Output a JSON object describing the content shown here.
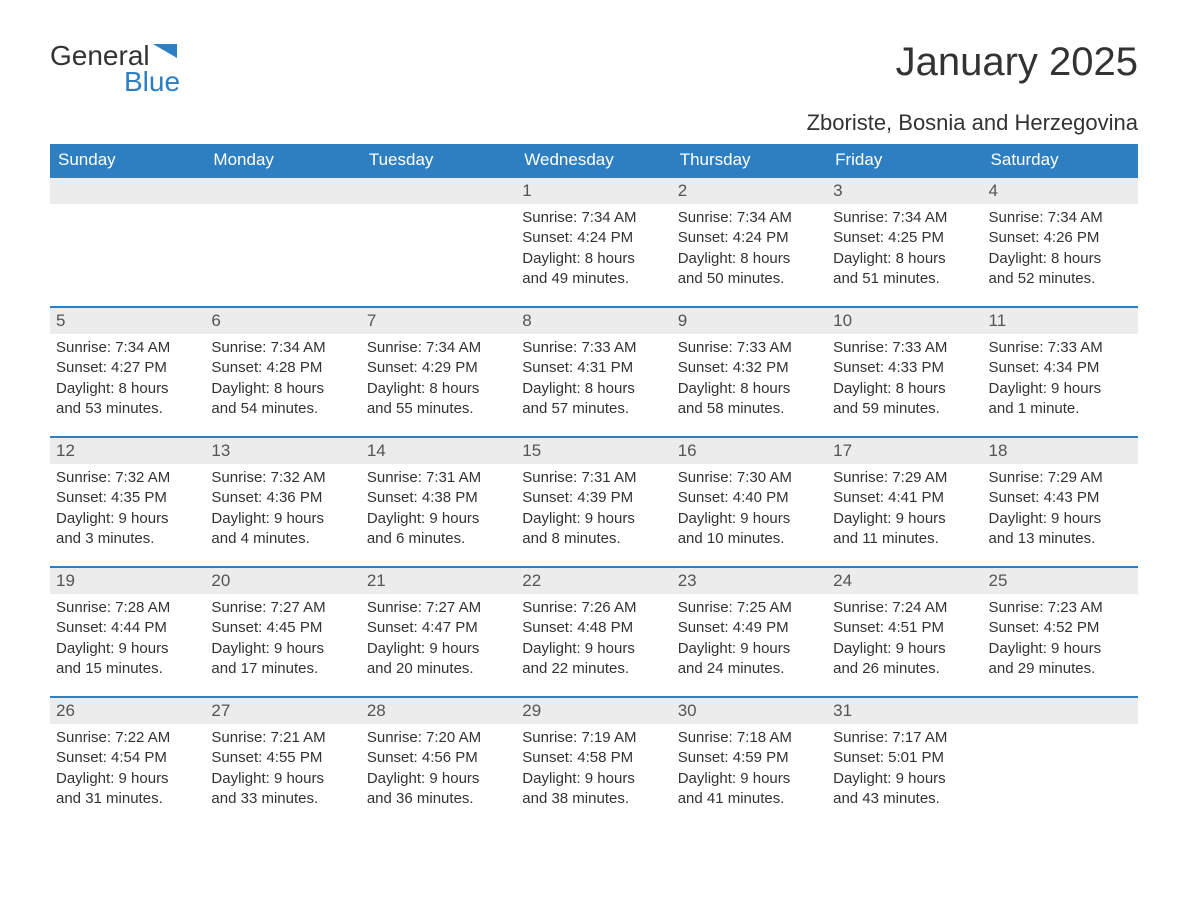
{
  "logo": {
    "text_general": "General",
    "text_blue": "Blue"
  },
  "title": "January 2025",
  "location": "Zboriste, Bosnia and Herzegovina",
  "colors": {
    "header_bg": "#2d7fc2",
    "daynum_bg": "#ececec",
    "text": "#333333",
    "row_border": "#2d7fc2"
  },
  "day_names": [
    "Sunday",
    "Monday",
    "Tuesday",
    "Wednesday",
    "Thursday",
    "Friday",
    "Saturday"
  ],
  "weeks": [
    [
      null,
      null,
      null,
      {
        "n": "1",
        "sunrise": "7:34 AM",
        "sunset": "4:24 PM",
        "day_l1": "Daylight: 8 hours",
        "day_l2": "and 49 minutes."
      },
      {
        "n": "2",
        "sunrise": "7:34 AM",
        "sunset": "4:24 PM",
        "day_l1": "Daylight: 8 hours",
        "day_l2": "and 50 minutes."
      },
      {
        "n": "3",
        "sunrise": "7:34 AM",
        "sunset": "4:25 PM",
        "day_l1": "Daylight: 8 hours",
        "day_l2": "and 51 minutes."
      },
      {
        "n": "4",
        "sunrise": "7:34 AM",
        "sunset": "4:26 PM",
        "day_l1": "Daylight: 8 hours",
        "day_l2": "and 52 minutes."
      }
    ],
    [
      {
        "n": "5",
        "sunrise": "7:34 AM",
        "sunset": "4:27 PM",
        "day_l1": "Daylight: 8 hours",
        "day_l2": "and 53 minutes."
      },
      {
        "n": "6",
        "sunrise": "7:34 AM",
        "sunset": "4:28 PM",
        "day_l1": "Daylight: 8 hours",
        "day_l2": "and 54 minutes."
      },
      {
        "n": "7",
        "sunrise": "7:34 AM",
        "sunset": "4:29 PM",
        "day_l1": "Daylight: 8 hours",
        "day_l2": "and 55 minutes."
      },
      {
        "n": "8",
        "sunrise": "7:33 AM",
        "sunset": "4:31 PM",
        "day_l1": "Daylight: 8 hours",
        "day_l2": "and 57 minutes."
      },
      {
        "n": "9",
        "sunrise": "7:33 AM",
        "sunset": "4:32 PM",
        "day_l1": "Daylight: 8 hours",
        "day_l2": "and 58 minutes."
      },
      {
        "n": "10",
        "sunrise": "7:33 AM",
        "sunset": "4:33 PM",
        "day_l1": "Daylight: 8 hours",
        "day_l2": "and 59 minutes."
      },
      {
        "n": "11",
        "sunrise": "7:33 AM",
        "sunset": "4:34 PM",
        "day_l1": "Daylight: 9 hours",
        "day_l2": "and 1 minute."
      }
    ],
    [
      {
        "n": "12",
        "sunrise": "7:32 AM",
        "sunset": "4:35 PM",
        "day_l1": "Daylight: 9 hours",
        "day_l2": "and 3 minutes."
      },
      {
        "n": "13",
        "sunrise": "7:32 AM",
        "sunset": "4:36 PM",
        "day_l1": "Daylight: 9 hours",
        "day_l2": "and 4 minutes."
      },
      {
        "n": "14",
        "sunrise": "7:31 AM",
        "sunset": "4:38 PM",
        "day_l1": "Daylight: 9 hours",
        "day_l2": "and 6 minutes."
      },
      {
        "n": "15",
        "sunrise": "7:31 AM",
        "sunset": "4:39 PM",
        "day_l1": "Daylight: 9 hours",
        "day_l2": "and 8 minutes."
      },
      {
        "n": "16",
        "sunrise": "7:30 AM",
        "sunset": "4:40 PM",
        "day_l1": "Daylight: 9 hours",
        "day_l2": "and 10 minutes."
      },
      {
        "n": "17",
        "sunrise": "7:29 AM",
        "sunset": "4:41 PM",
        "day_l1": "Daylight: 9 hours",
        "day_l2": "and 11 minutes."
      },
      {
        "n": "18",
        "sunrise": "7:29 AM",
        "sunset": "4:43 PM",
        "day_l1": "Daylight: 9 hours",
        "day_l2": "and 13 minutes."
      }
    ],
    [
      {
        "n": "19",
        "sunrise": "7:28 AM",
        "sunset": "4:44 PM",
        "day_l1": "Daylight: 9 hours",
        "day_l2": "and 15 minutes."
      },
      {
        "n": "20",
        "sunrise": "7:27 AM",
        "sunset": "4:45 PM",
        "day_l1": "Daylight: 9 hours",
        "day_l2": "and 17 minutes."
      },
      {
        "n": "21",
        "sunrise": "7:27 AM",
        "sunset": "4:47 PM",
        "day_l1": "Daylight: 9 hours",
        "day_l2": "and 20 minutes."
      },
      {
        "n": "22",
        "sunrise": "7:26 AM",
        "sunset": "4:48 PM",
        "day_l1": "Daylight: 9 hours",
        "day_l2": "and 22 minutes."
      },
      {
        "n": "23",
        "sunrise": "7:25 AM",
        "sunset": "4:49 PM",
        "day_l1": "Daylight: 9 hours",
        "day_l2": "and 24 minutes."
      },
      {
        "n": "24",
        "sunrise": "7:24 AM",
        "sunset": "4:51 PM",
        "day_l1": "Daylight: 9 hours",
        "day_l2": "and 26 minutes."
      },
      {
        "n": "25",
        "sunrise": "7:23 AM",
        "sunset": "4:52 PM",
        "day_l1": "Daylight: 9 hours",
        "day_l2": "and 29 minutes."
      }
    ],
    [
      {
        "n": "26",
        "sunrise": "7:22 AM",
        "sunset": "4:54 PM",
        "day_l1": "Daylight: 9 hours",
        "day_l2": "and 31 minutes."
      },
      {
        "n": "27",
        "sunrise": "7:21 AM",
        "sunset": "4:55 PM",
        "day_l1": "Daylight: 9 hours",
        "day_l2": "and 33 minutes."
      },
      {
        "n": "28",
        "sunrise": "7:20 AM",
        "sunset": "4:56 PM",
        "day_l1": "Daylight: 9 hours",
        "day_l2": "and 36 minutes."
      },
      {
        "n": "29",
        "sunrise": "7:19 AM",
        "sunset": "4:58 PM",
        "day_l1": "Daylight: 9 hours",
        "day_l2": "and 38 minutes."
      },
      {
        "n": "30",
        "sunrise": "7:18 AM",
        "sunset": "4:59 PM",
        "day_l1": "Daylight: 9 hours",
        "day_l2": "and 41 minutes."
      },
      {
        "n": "31",
        "sunrise": "7:17 AM",
        "sunset": "5:01 PM",
        "day_l1": "Daylight: 9 hours",
        "day_l2": "and 43 minutes."
      },
      null
    ]
  ],
  "labels": {
    "sunrise_prefix": "Sunrise: ",
    "sunset_prefix": "Sunset: "
  }
}
